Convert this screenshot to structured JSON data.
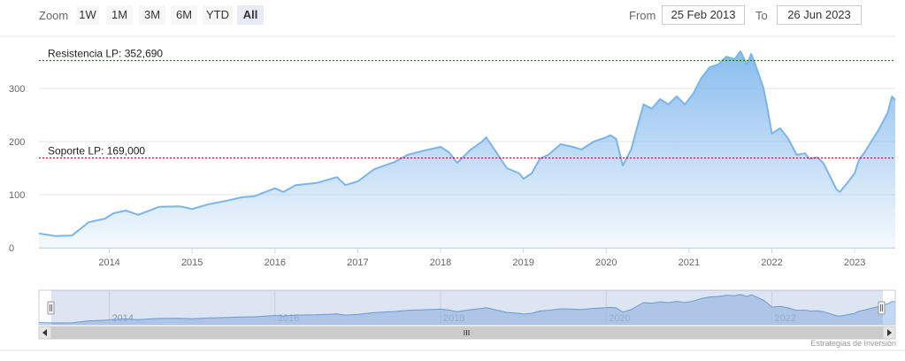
{
  "toolbar": {
    "zoom_label": "Zoom",
    "zoom_buttons": [
      "1W",
      "1M",
      "3M",
      "6M",
      "YTD",
      "All"
    ],
    "active_zoom": "All",
    "from_label": "From",
    "from_value": "25 Feb 2013",
    "to_label": "To",
    "to_value": "26 Jun 2023"
  },
  "credit": "Estrategias de Inversión",
  "colors": {
    "series_line": "#7cb5ec",
    "area_top": "#7cb5ec",
    "resistance_line": "#006400",
    "support_line": "#8b0000",
    "navigator_fill": "#d6e2f5"
  },
  "chart_data": {
    "type": "area",
    "title": "",
    "xlabel": "",
    "ylabel": "",
    "x_range": [
      2013.15,
      2023.49
    ],
    "ylim": [
      0,
      400
    ],
    "y_ticks": [
      0,
      100,
      200,
      300
    ],
    "x_ticks": [
      "2014",
      "2015",
      "2016",
      "2017",
      "2018",
      "2019",
      "2020",
      "2021",
      "2022",
      "2023"
    ],
    "series": [
      {
        "x": [
          2013.15,
          2013.35,
          2013.55,
          2013.75,
          2013.95,
          2014.05,
          2014.2,
          2014.35,
          2014.6,
          2014.85,
          2015.0,
          2015.2,
          2015.4,
          2015.6,
          2015.75,
          2015.85,
          2016.0,
          2016.1,
          2016.25,
          2016.5,
          2016.75,
          2016.85,
          2017.0,
          2017.2,
          2017.45,
          2017.6,
          2017.8,
          2018.0,
          2018.1,
          2018.2,
          2018.35,
          2018.5,
          2018.55,
          2018.65,
          2018.8,
          2018.95,
          2019.0,
          2019.1,
          2019.2,
          2019.3,
          2019.45,
          2019.6,
          2019.7,
          2019.85,
          2020.0,
          2020.05,
          2020.12,
          2020.2,
          2020.3,
          2020.45,
          2020.55,
          2020.65,
          2020.75,
          2020.85,
          2020.95,
          2021.05,
          2021.15,
          2021.25,
          2021.35,
          2021.45,
          2021.55,
          2021.62,
          2021.7,
          2021.75,
          2021.8,
          2021.9,
          2021.95,
          2022.0,
          2022.1,
          2022.2,
          2022.3,
          2022.4,
          2022.45,
          2022.55,
          2022.62,
          2022.7,
          2022.78,
          2022.82,
          2022.9,
          2023.0,
          2023.05,
          2023.12,
          2023.2,
          2023.3,
          2023.4,
          2023.45,
          2023.49
        ],
        "values": [
          27,
          22,
          23,
          48,
          55,
          65,
          70,
          62,
          77,
          78,
          73,
          82,
          88,
          95,
          97,
          103,
          112,
          105,
          118,
          122,
          133,
          118,
          125,
          148,
          162,
          175,
          183,
          190,
          180,
          160,
          183,
          200,
          208,
          185,
          150,
          140,
          130,
          140,
          168,
          175,
          195,
          190,
          185,
          200,
          208,
          212,
          205,
          155,
          185,
          270,
          262,
          280,
          270,
          285,
          270,
          290,
          320,
          340,
          345,
          360,
          355,
          370,
          345,
          365,
          345,
          300,
          260,
          215,
          225,
          205,
          175,
          178,
          168,
          170,
          160,
          135,
          110,
          105,
          120,
          140,
          165,
          180,
          200,
          225,
          255,
          285,
          278
        ]
      }
    ],
    "annotations": [
      {
        "label": "Resistencia LP: 352,690",
        "value": 352.69,
        "color": "#006400"
      },
      {
        "label": "Soporte LP: 169,000",
        "value": 169.0,
        "color": "#8b0000"
      }
    ],
    "navigator_ticks": [
      "2014",
      "2016",
      "2018",
      "2020",
      "2022"
    ],
    "grid": true,
    "legend": "none"
  }
}
